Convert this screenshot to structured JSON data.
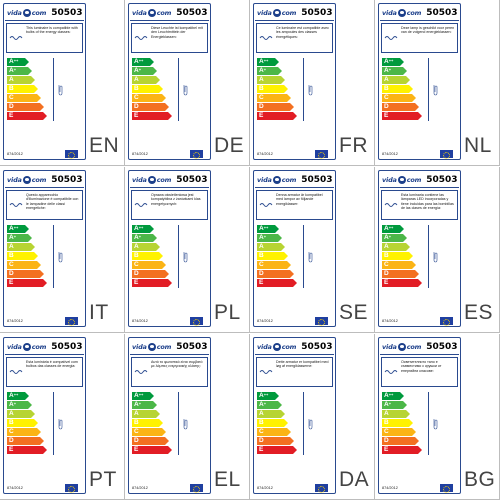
{
  "brand": {
    "logo_left": "vida",
    "logo_right": "com"
  },
  "product_code": "50503",
  "regulation": "874/2012",
  "energy_classes": [
    {
      "label": "A",
      "sup": "++",
      "color": "#009a3d",
      "width": 22
    },
    {
      "label": "A",
      "sup": "+",
      "color": "#4cb748",
      "width": 25
    },
    {
      "label": "A",
      "sup": "",
      "color": "#b7d433",
      "width": 28
    },
    {
      "label": "B",
      "sup": "",
      "color": "#fff200",
      "width": 31
    },
    {
      "label": "C",
      "sup": "",
      "color": "#fbb415",
      "width": 34
    },
    {
      "label": "D",
      "sup": "",
      "color": "#f37021",
      "width": 37
    },
    {
      "label": "E",
      "sup": "",
      "color": "#e21d25",
      "width": 40
    }
  ],
  "labels": [
    {
      "lang": "EN",
      "text": "This luminaire is compatible with bulbs of the energy classes:"
    },
    {
      "lang": "DE",
      "text": "Diese Leuchte ist kompatibel mit den Leuchtmitteln der Energieklassen:"
    },
    {
      "lang": "FR",
      "text": "Ce luminaire est compatible avec les ampoules des classes énergétiques:"
    },
    {
      "lang": "NL",
      "text": "Deze lamp is geschikt voor peren van de volgend energieklassen:"
    },
    {
      "lang": "IT",
      "text": "Questo apparecchio d'illuminazione è compatibile con le lampadine delle classi energetiche:"
    },
    {
      "lang": "PL",
      "text": "Oprawa oświetleniowa jest kompatybilna z żarówkami klas energetycznych:"
    },
    {
      "lang": "SE",
      "text": "Denna armatur är kompatibel med lampor av följande energiklasser:"
    },
    {
      "lang": "ES",
      "text": "Esta luminaria contiene las lámparas LED incorporadas y tiene incluidas para las bombillas de las clases de energía:"
    },
    {
      "lang": "PT",
      "text": "Esta luminária é compatível com bulbos das classes de energia:"
    },
    {
      "lang": "EL",
      "text": "Αυτό το φωτιστικό είναι συμβατό με λάμπες ενεργειακής κλάσης:"
    },
    {
      "lang": "DA",
      "text": "Dette armatur er kompatibel med løg af energiklasserne:"
    },
    {
      "lang": "BG",
      "text": "Осветителното тяло е съвместимо с крушки от енергийни класове:"
    }
  ]
}
